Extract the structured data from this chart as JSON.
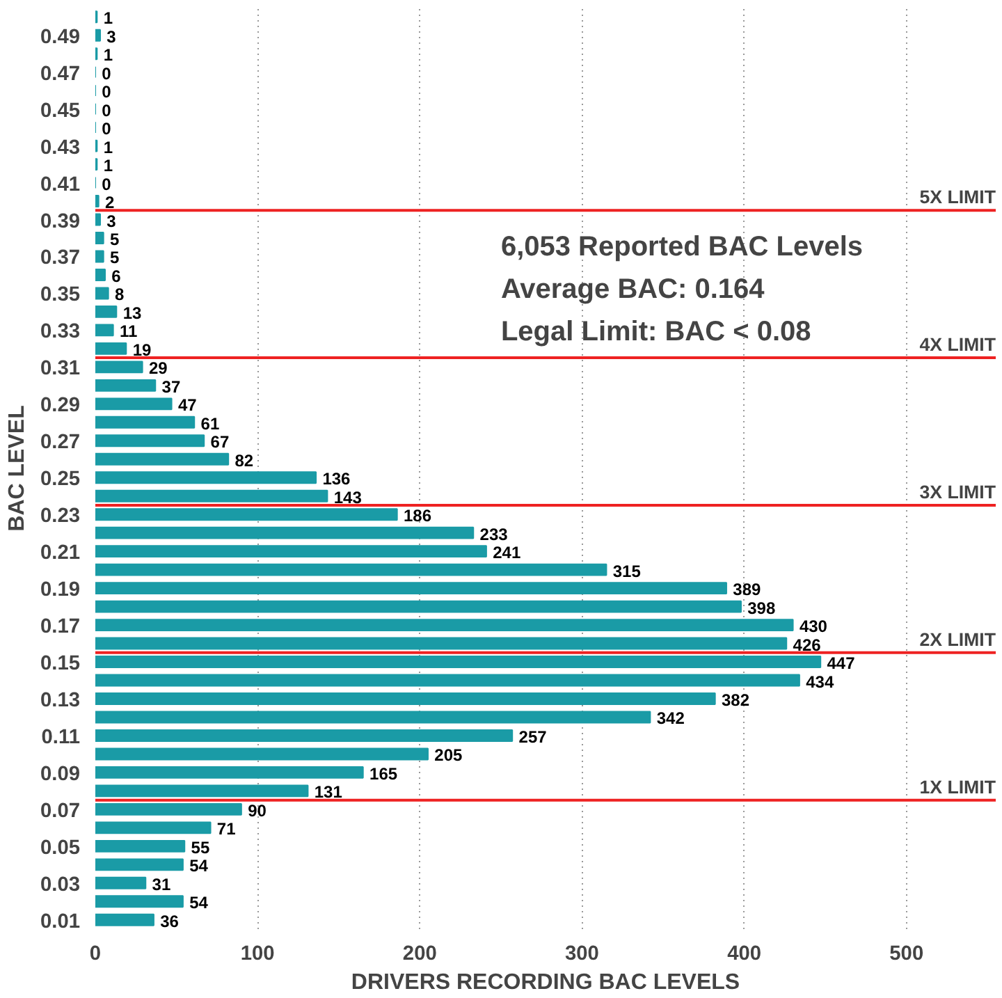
{
  "chart_data": {
    "type": "bar",
    "orientation": "horizontal",
    "xlabel": "DRIVERS RECORDING BAC LEVELS",
    "ylabel": "BAC LEVEL",
    "x": [
      0.5,
      0.49,
      0.48,
      0.47,
      0.46,
      0.45,
      0.44,
      0.43,
      0.42,
      0.41,
      0.4,
      0.39,
      0.38,
      0.37,
      0.36,
      0.35,
      0.34,
      0.33,
      0.32,
      0.31,
      0.3,
      0.29,
      0.28,
      0.27,
      0.26,
      0.25,
      0.24,
      0.23,
      0.22,
      0.21,
      0.2,
      0.19,
      0.18,
      0.17,
      0.16,
      0.15,
      0.14,
      0.13,
      0.12,
      0.11,
      0.1,
      0.09,
      0.08,
      0.07,
      0.06,
      0.05,
      0.04,
      0.03,
      0.02,
      0.01
    ],
    "values": [
      1,
      3,
      1,
      0,
      0,
      0,
      0,
      1,
      1,
      0,
      2,
      3,
      5,
      5,
      6,
      8,
      13,
      11,
      19,
      29,
      37,
      47,
      61,
      67,
      82,
      136,
      143,
      186,
      233,
      241,
      315,
      389,
      398,
      430,
      426,
      447,
      434,
      382,
      342,
      257,
      205,
      165,
      131,
      90,
      71,
      55,
      54,
      31,
      54,
      36
    ],
    "color": "#1a9ba6",
    "data_labels": true,
    "xlim": [
      0,
      555
    ],
    "xticks": [
      0,
      100,
      200,
      300,
      400,
      500
    ],
    "ylim": [
      0.005,
      0.505
    ],
    "yticks": [
      0.01,
      0.03,
      0.05,
      0.07,
      0.09,
      0.11,
      0.13,
      0.15,
      0.17,
      0.19,
      0.21,
      0.23,
      0.25,
      0.27,
      0.29,
      0.31,
      0.33,
      0.35,
      0.37,
      0.39,
      0.41,
      0.43,
      0.45,
      0.47,
      0.49
    ],
    "grid": "x",
    "ref_lines": [
      {
        "axis": "y",
        "value": 0.075,
        "label": "1X LIMIT",
        "color": "#ee2222"
      },
      {
        "axis": "y",
        "value": 0.155,
        "label": "2X LIMIT",
        "color": "#ee2222"
      },
      {
        "axis": "y",
        "value": 0.235,
        "label": "3X LIMIT",
        "color": "#ee2222"
      },
      {
        "axis": "y",
        "value": 0.315,
        "label": "4X LIMIT",
        "color": "#ee2222"
      },
      {
        "axis": "y",
        "value": 0.395,
        "label": "5X LIMIT",
        "color": "#ee2222"
      }
    ],
    "annotations": [
      "6,053 Reported BAC Levels",
      "Average BAC: 0.164",
      "Legal Limit: BAC < 0.08"
    ]
  }
}
